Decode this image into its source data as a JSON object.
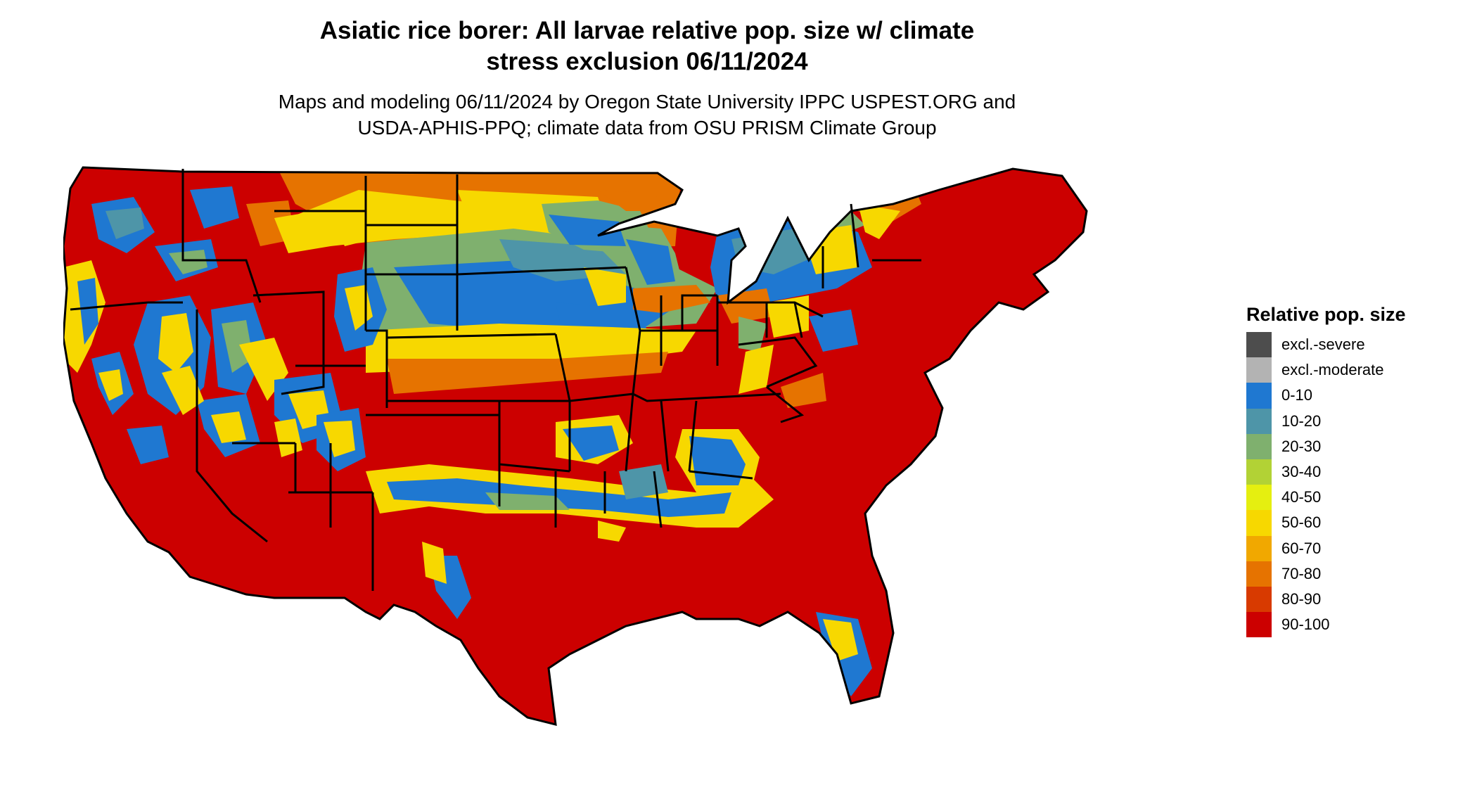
{
  "title": {
    "line1": "Asiatic rice borer: All larvae relative pop. size w/ climate",
    "line2": "stress exclusion 06/11/2024"
  },
  "subtitle": {
    "line1": "Maps and modeling 06/11/2024 by Oregon State University IPPC USPEST.ORG and",
    "line2": "USDA-APHIS-PPQ; climate data from OSU PRISM Climate Group"
  },
  "legend": {
    "title": "Relative pop. size",
    "items": [
      {
        "label": "excl.-severe",
        "color": "#4d4d4d"
      },
      {
        "label": "excl.-moderate",
        "color": "#b3b3b3"
      },
      {
        "label": "0-10",
        "color": "#1f78d1"
      },
      {
        "label": "10-20",
        "color": "#4e95a8"
      },
      {
        "label": "20-30",
        "color": "#7fb06e"
      },
      {
        "label": "30-40",
        "color": "#b2d235"
      },
      {
        "label": "40-50",
        "color": "#e5ef10"
      },
      {
        "label": "50-60",
        "color": "#f7d800"
      },
      {
        "label": "60-70",
        "color": "#f1a800"
      },
      {
        "label": "70-80",
        "color": "#e67300"
      },
      {
        "label": "80-90",
        "color": "#d83a00"
      },
      {
        "label": "90-100",
        "color": "#cc0000"
      }
    ]
  },
  "map": {
    "region": "Contiguous United States",
    "palette": {
      "lowest": "#1f78d1",
      "low": "#4e95a8",
      "lowmid": "#7fb06e",
      "mid": "#e5ef10",
      "midhigh": "#f7d800",
      "high": "#e67300",
      "highest": "#cc0000",
      "border": "#000000"
    }
  }
}
